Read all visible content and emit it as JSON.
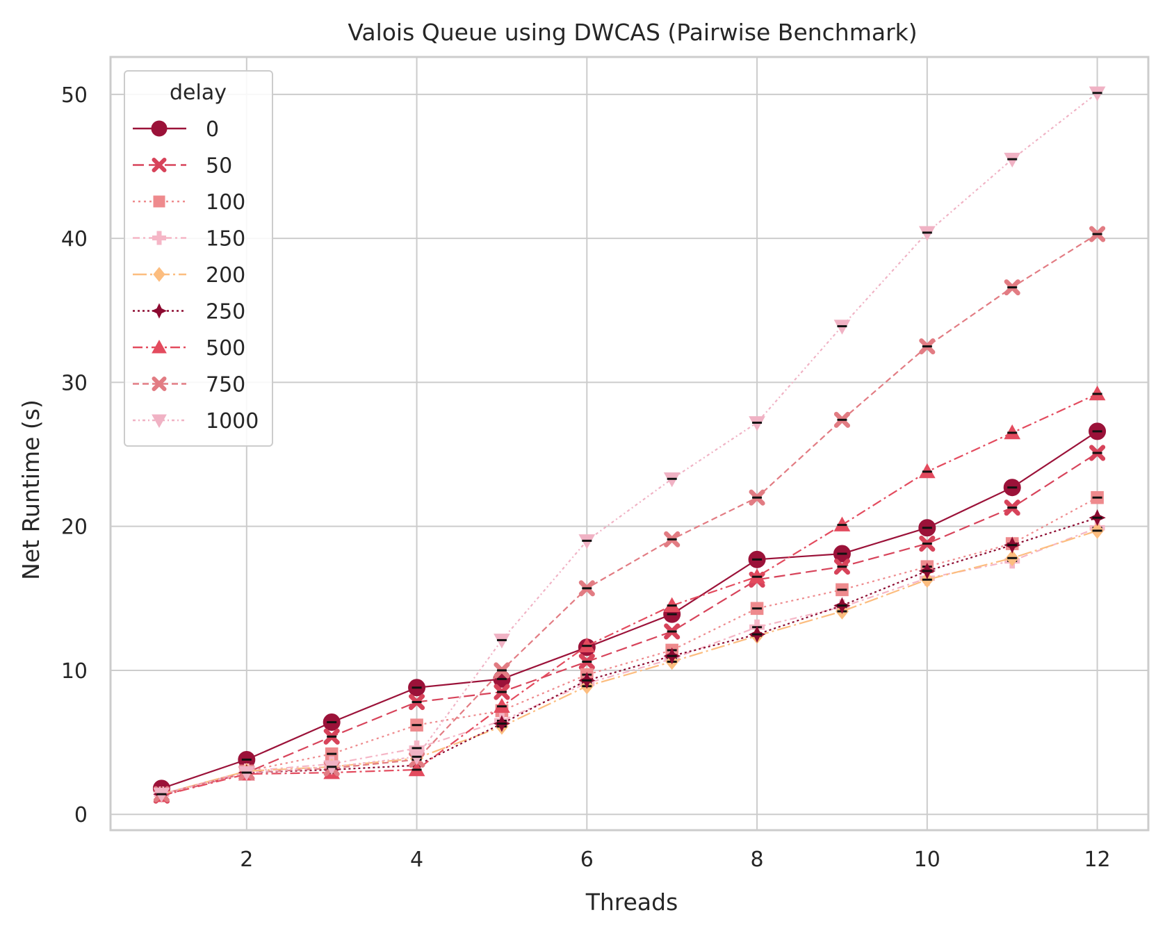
{
  "chart_data": {
    "type": "line",
    "title": "Valois Queue using DWCAS (Pairwise Benchmark)",
    "xlabel": "Threads",
    "ylabel": "Net Runtime (s)",
    "xlim": [
      0.4,
      12.6
    ],
    "ylim": [
      -1.1,
      52.6
    ],
    "xticks": [
      2,
      4,
      6,
      8,
      10,
      12
    ],
    "yticks": [
      0,
      10,
      20,
      30,
      40,
      50
    ],
    "grid": true,
    "legend": {
      "title": "delay",
      "placement": "top-left"
    },
    "x": [
      1,
      2,
      3,
      4,
      5,
      6,
      7,
      8,
      9,
      10,
      11,
      12
    ],
    "series": [
      {
        "name": "0",
        "color": "#9b1239",
        "marker": "circle",
        "dash": "",
        "values": [
          1.8,
          3.8,
          6.4,
          8.8,
          9.4,
          11.6,
          13.9,
          17.7,
          18.1,
          19.9,
          22.7,
          26.6
        ]
      },
      {
        "name": "50",
        "color": "#d7435a",
        "marker": "x",
        "dash": "16,7",
        "values": [
          1.3,
          2.9,
          5.4,
          7.8,
          8.5,
          10.6,
          12.7,
          16.3,
          17.2,
          18.8,
          21.3,
          25.1
        ]
      },
      {
        "name": "100",
        "color": "#ee8a8d",
        "marker": "square",
        "dash": "3,5",
        "values": [
          1.4,
          3.0,
          4.2,
          6.2,
          7.2,
          9.7,
          11.4,
          14.3,
          15.6,
          17.2,
          18.8,
          22.0
        ]
      },
      {
        "name": "150",
        "color": "#f5b6c6",
        "marker": "plus",
        "dash": "10,5,3,5",
        "values": [
          1.4,
          3.0,
          3.5,
          4.6,
          6.5,
          9.1,
          10.8,
          13.0,
          14.4,
          16.4,
          17.6,
          19.9
        ]
      },
      {
        "name": "200",
        "color": "#fcbd7f",
        "marker": "diamond",
        "dash": "20,5,3,5",
        "values": [
          1.4,
          3.0,
          3.3,
          3.9,
          6.1,
          8.9,
          10.6,
          12.4,
          14.1,
          16.3,
          17.8,
          19.7
        ]
      },
      {
        "name": "250",
        "color": "#8c0a30",
        "marker": "star",
        "dash": "3,4",
        "values": [
          1.4,
          2.9,
          3.1,
          3.4,
          6.3,
          9.3,
          11.0,
          12.5,
          14.5,
          16.9,
          18.7,
          20.6
        ]
      },
      {
        "name": "500",
        "color": "#e34b5e",
        "marker": "triangle-up",
        "dash": "14,5,3,5",
        "values": [
          1.3,
          2.8,
          2.9,
          3.1,
          7.5,
          11.7,
          14.5,
          16.5,
          20.1,
          23.8,
          26.5,
          29.2
        ]
      },
      {
        "name": "750",
        "color": "#e27c83",
        "marker": "x",
        "dash": "9,5",
        "values": [
          1.4,
          2.9,
          3.2,
          3.8,
          10.0,
          15.7,
          19.1,
          22.0,
          27.4,
          32.5,
          36.6,
          40.3
        ]
      },
      {
        "name": "1000",
        "color": "#f0b2c4",
        "marker": "triangle-down",
        "dash": "4,4,2,4",
        "values": [
          1.4,
          2.9,
          3.3,
          4.0,
          12.1,
          19.0,
          23.3,
          27.2,
          33.9,
          40.4,
          45.5,
          50.1
        ]
      }
    ]
  }
}
